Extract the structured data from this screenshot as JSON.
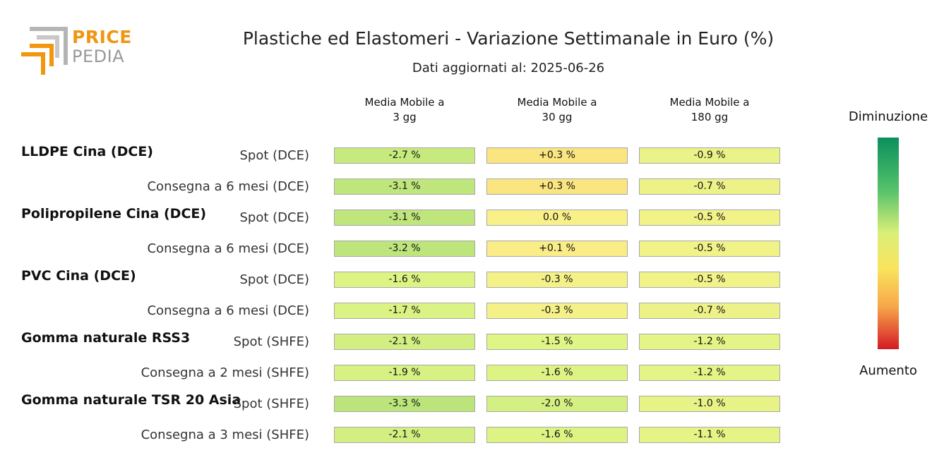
{
  "logo": {
    "line1": "PRICE",
    "line2": "PEDIA"
  },
  "title": "Plastiche ed Elastomeri - Variazione Settimanale in Euro (%)",
  "subtitle": "Dati aggiornati al: 2025-06-26",
  "legend": {
    "top": "Diminuzione",
    "bottom": "Aumento"
  },
  "colors": {
    "logo_orange": "#f0960f",
    "logo_grey": "#999999",
    "cell_border": "#a8a8a8"
  },
  "chart_data": {
    "type": "heatmap",
    "columns": [
      "Media Mobile a\n3 gg",
      "Media Mobile a\n30 gg",
      "Media Mobile a\n180 gg"
    ],
    "groups": [
      {
        "name": "LLDPE Cina (DCE)",
        "rows": [
          {
            "label": "Spot (DCE)",
            "values": [
              -2.7,
              0.3,
              -0.9
            ],
            "display": [
              "-2.7 %",
              "+0.3 %",
              "-0.9 %"
            ]
          },
          {
            "label": "Consegna a 6 mesi (DCE)",
            "values": [
              -3.1,
              0.3,
              -0.7
            ],
            "display": [
              "-3.1 %",
              "+0.3 %",
              "-0.7 %"
            ]
          }
        ]
      },
      {
        "name": "Polipropilene Cina (DCE)",
        "rows": [
          {
            "label": "Spot (DCE)",
            "values": [
              -3.1,
              0.0,
              -0.5
            ],
            "display": [
              "-3.1 %",
              "0.0 %",
              "-0.5 %"
            ]
          },
          {
            "label": "Consegna a 6 mesi (DCE)",
            "values": [
              -3.2,
              0.1,
              -0.5
            ],
            "display": [
              "-3.2 %",
              "+0.1 %",
              "-0.5 %"
            ]
          }
        ]
      },
      {
        "name": "PVC Cina (DCE)",
        "rows": [
          {
            "label": "Spot (DCE)",
            "values": [
              -1.6,
              -0.3,
              -0.5
            ],
            "display": [
              "-1.6 %",
              "-0.3 %",
              "-0.5 %"
            ]
          },
          {
            "label": "Consegna a 6 mesi (DCE)",
            "values": [
              -1.7,
              -0.3,
              -0.7
            ],
            "display": [
              "-1.7 %",
              "-0.3 %",
              "-0.7 %"
            ]
          }
        ]
      },
      {
        "name": "Gomma naturale RSS3",
        "rows": [
          {
            "label": "Spot (SHFE)",
            "values": [
              -2.1,
              -1.5,
              -1.2
            ],
            "display": [
              "-2.1 %",
              "-1.5 %",
              "-1.2 %"
            ]
          },
          {
            "label": "Consegna a 2 mesi (SHFE)",
            "values": [
              -1.9,
              -1.6,
              -1.2
            ],
            "display": [
              "-1.9 %",
              "-1.6 %",
              "-1.2 %"
            ]
          }
        ]
      },
      {
        "name": "Gomma naturale TSR 20 Asia",
        "rows": [
          {
            "label": "Spot (SHFE)",
            "values": [
              -3.3,
              -2.0,
              -1.0
            ],
            "display": [
              "-3.3 %",
              "-2.0 %",
              "-1.0 %"
            ]
          },
          {
            "label": "Consegna a 3 mesi (SHFE)",
            "values": [
              -2.1,
              -1.6,
              -1.1
            ],
            "display": [
              "-2.1 %",
              "-1.6 %",
              "-1.1 %"
            ]
          }
        ]
      }
    ],
    "color_scale": [
      "#0a8f5e",
      "#56c26a",
      "#d9ef78",
      "#f9e45c",
      "#f7a64a",
      "#d41a24"
    ]
  }
}
